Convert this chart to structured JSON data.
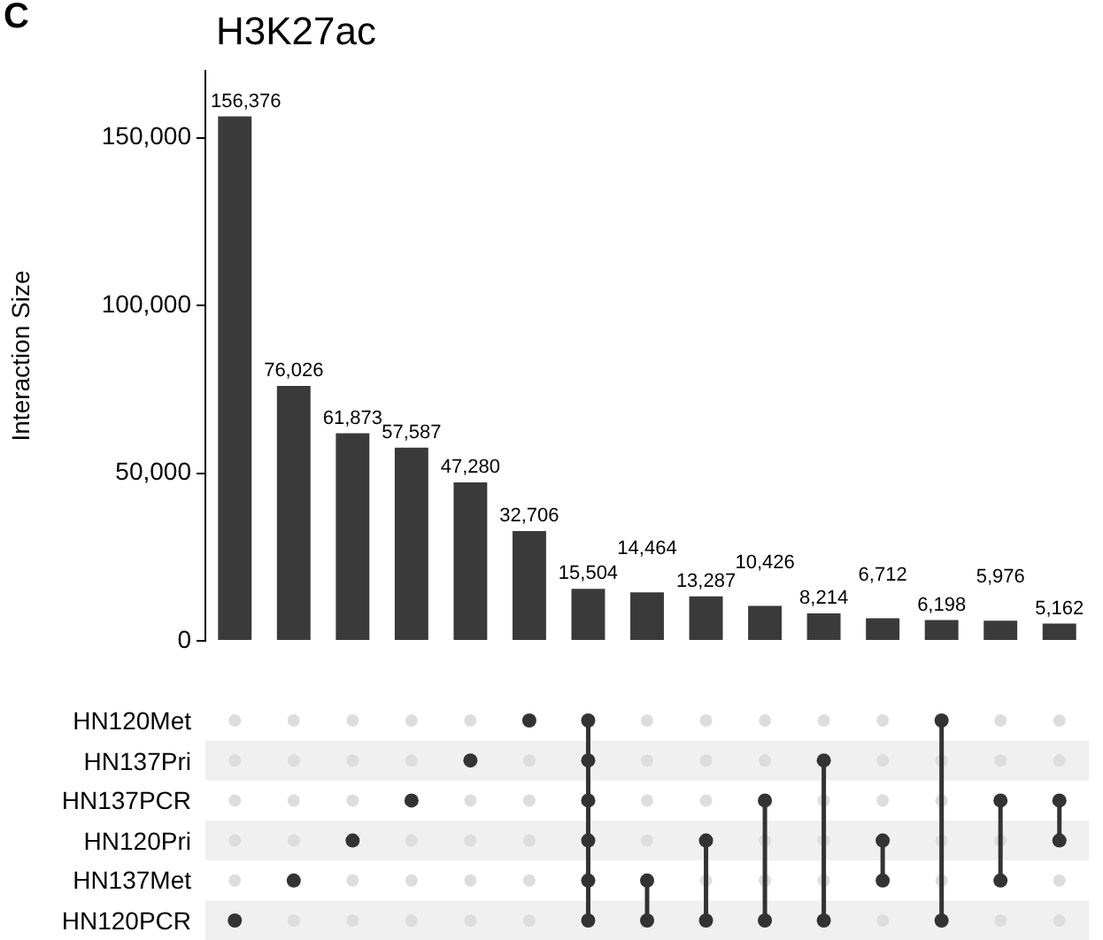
{
  "chart_data": [
    {
      "type": "bar",
      "title": "H3K27ac",
      "ylabel": "Interaction Size",
      "annotations": [
        "C"
      ],
      "categories": [
        null,
        null,
        null,
        null,
        null,
        null,
        null,
        null,
        null,
        null,
        null,
        null,
        null,
        null,
        null
      ],
      "values": [
        156376,
        76026,
        61873,
        57587,
        47280,
        32706,
        15504,
        14464,
        13287,
        10426,
        8214,
        6712,
        6198,
        5976,
        5162
      ],
      "value_labels": [
        "156,376",
        "76,026",
        "61,873",
        "57,587",
        "47,280",
        "32,706",
        "15,504",
        "14,464",
        "13,287",
        "10,426",
        "8,214",
        "6,712",
        "6,198",
        "5,976",
        "5,162"
      ],
      "color": "#3a3a3a",
      "ylim": [
        0,
        170000
      ],
      "yticks": [
        0,
        {
          "value": 50000,
          "label": "50,000"
        },
        {
          "value": 100000,
          "label": "100,000"
        },
        {
          "value": 150000,
          "label": "150,000"
        }
      ]
    },
    {
      "type": "other",
      "annotations": [
        "HN120Met",
        "HN137Pri",
        "HN137PCR",
        "HN120Pri",
        "HN137Met",
        "HN120PCR"
      ]
    }
  ]
}
